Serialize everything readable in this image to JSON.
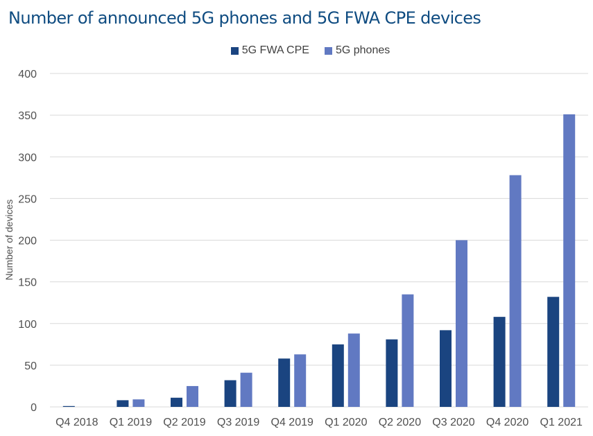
{
  "chart_data": {
    "type": "bar",
    "title": "Number of announced 5G phones and 5G FWA CPE devices",
    "xlabel": "",
    "ylabel": "Number of devices",
    "ylim": [
      0,
      400
    ],
    "yticks": [
      0,
      50,
      100,
      150,
      200,
      250,
      300,
      350,
      400
    ],
    "grid": true,
    "legend_position": "top",
    "categories": [
      "Q4 2018",
      "Q1 2019",
      "Q2 2019",
      "Q3 2019",
      "Q4 2019",
      "Q1 2020",
      "Q2 2020",
      "Q3 2020",
      "Q4 2020",
      "Q1 2021"
    ],
    "series": [
      {
        "name": "5G FWA CPE",
        "color": "#1a4480",
        "values": [
          1,
          8,
          11,
          32,
          58,
          75,
          81,
          92,
          108,
          132
        ]
      },
      {
        "name": "5G phones",
        "color": "#6179c2",
        "values": [
          0,
          9,
          25,
          41,
          63,
          88,
          135,
          200,
          278,
          351
        ]
      }
    ]
  }
}
